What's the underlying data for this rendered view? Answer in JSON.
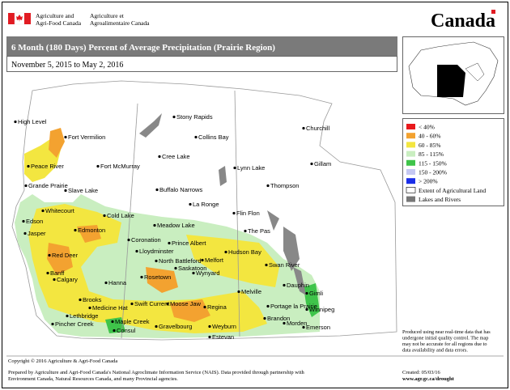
{
  "header": {
    "department_en": [
      "Agriculture and",
      "Agri-Food Canada"
    ],
    "department_fr": [
      "Agriculture et",
      "Agroalimentaire Canada"
    ],
    "wordmark": "Canada"
  },
  "title": "6 Month (180 Days) Percent of Average Precipitation (Prairie Region)",
  "period": "November 5, 2015 to May 2, 2016",
  "legend": {
    "items": [
      "< 40%",
      "40 - 60%",
      "60 - 85%",
      "85 - 115%",
      "115 - 150%",
      "150 - 200%",
      "> 200%",
      "Extent of Agricultural Land",
      "Lakes and Rivers"
    ]
  },
  "note": "Produced using near real-time data that has undergone initial quality control.  The map may not be accurate for all regions due to data availability and data errors.",
  "cities": [
    "Stony Rapids",
    "Churchill",
    "High Level",
    "Fort Vermilion",
    "Collins Bay",
    "Cree Lake",
    "Fort McMurray",
    "Peace River",
    "Lynn Lake",
    "Gillam",
    "Grande Prairie",
    "Slave Lake",
    "Buffalo Narrows",
    "Thompson",
    "La Ronge",
    "Cold Lake",
    "Whitecourt",
    "Flin Flon",
    "Edson",
    "Meadow Lake",
    "Jasper",
    "Edmonton",
    "The Pas",
    "Coronation",
    "Prince Albert",
    "Lloydminster",
    "Hudson Bay",
    "Red Deer",
    "North Battleford",
    "Melfort",
    "Banff",
    "Swan River",
    "Calgary",
    "Saskatoon",
    "Rosetown",
    "Wynyard",
    "Hanna",
    "Dauphin",
    "Melville",
    "Gimli",
    "Brooks",
    "Swift Current",
    "Moose Jaw",
    "Medicine Hat",
    "Regina",
    "Portage la Prairie",
    "Winnipeg",
    "Lethbridge",
    "Brandon",
    "Pincher Creek",
    "Maple Creek",
    "Gravelbourg",
    "Weyburn",
    "Morden",
    "Emerson",
    "Consul",
    "Estevan"
  ],
  "footer": {
    "copyright": "Copyright © 2016 Agriculture & Agri-Food Canada",
    "prepared": [
      "Prepared by Agriculture and Agri-Food Canada's National Agroclimate Information Service (NAIS).  Data provided through partnership with",
      "Environment Canada, Natural Resources Canada, and many Provincial agencies."
    ],
    "created": "Created: 05/03/16",
    "url": "www.agr.gc.ca/drought"
  }
}
